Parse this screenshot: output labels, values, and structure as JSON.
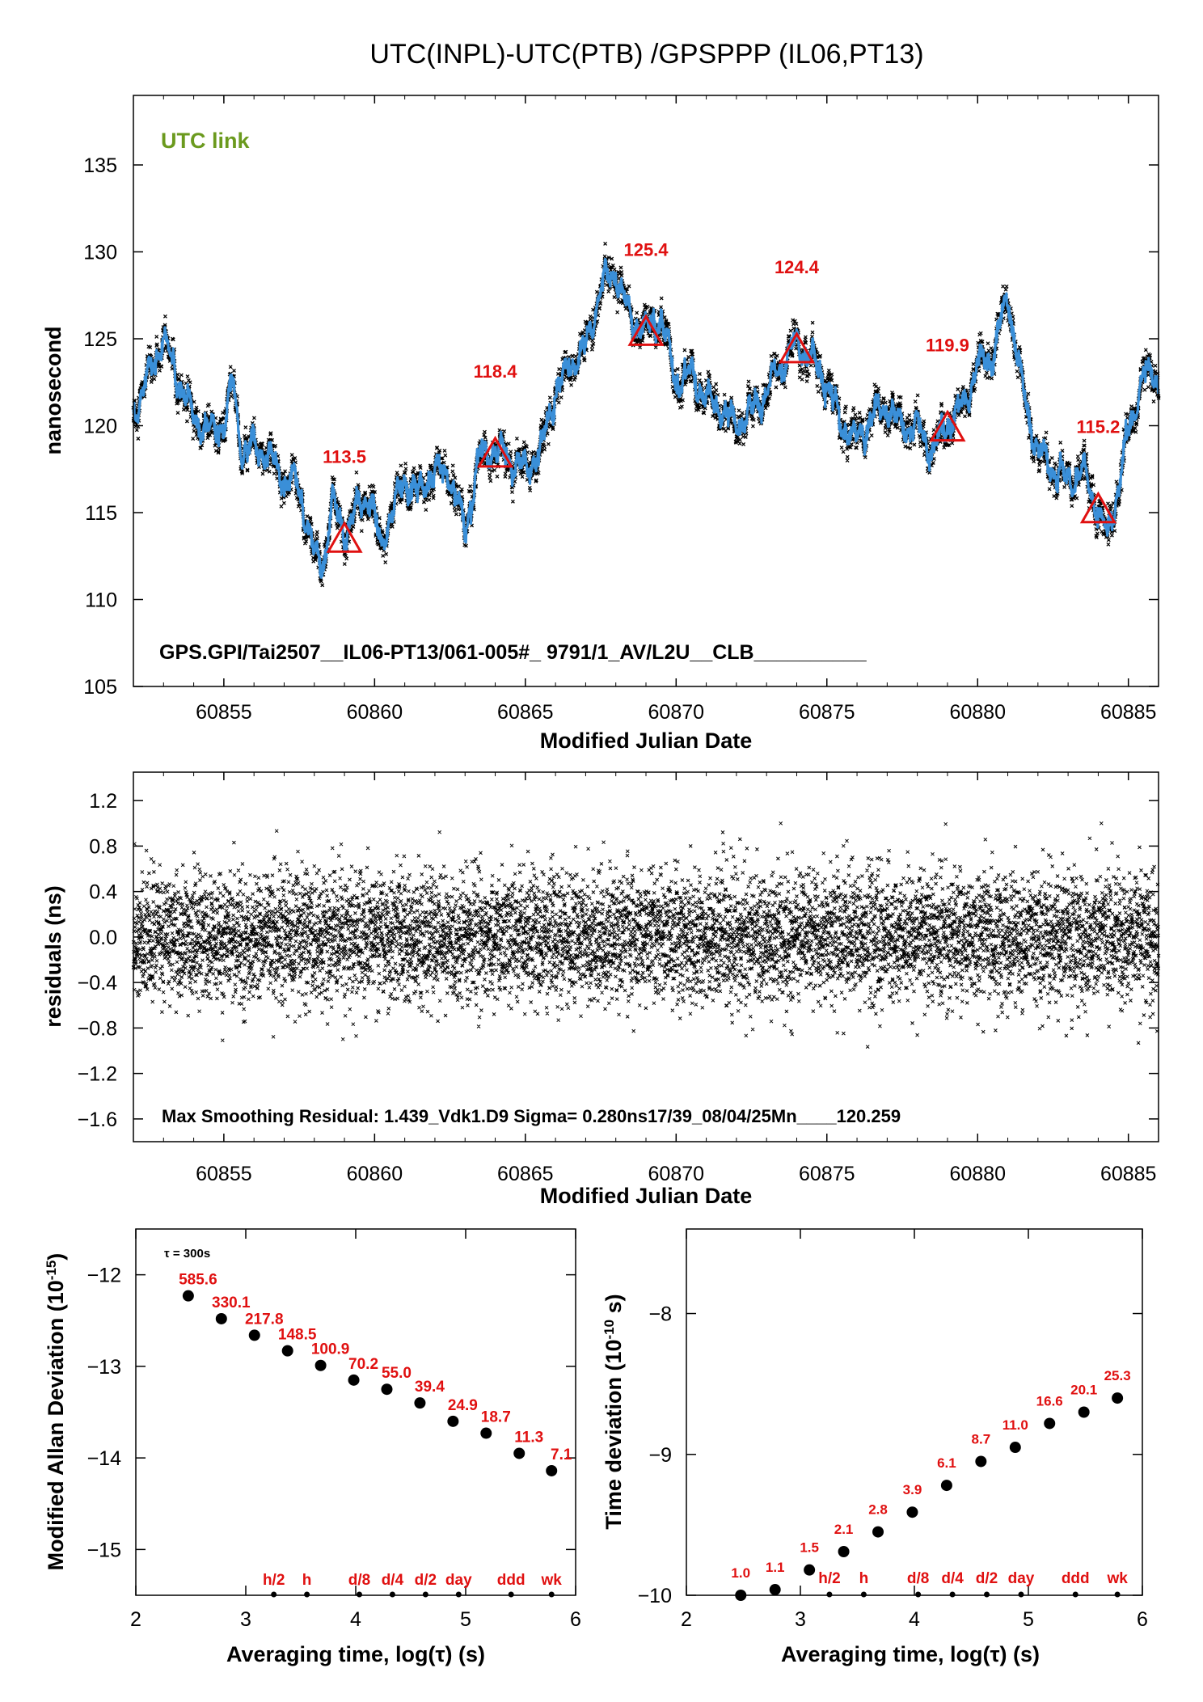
{
  "title": "UTC(INPL)-UTC(PTB)  /GPSPPP  (IL06,PT13)",
  "colors": {
    "series": "#3a8fd8",
    "points": "#000000",
    "markers": "#e01010",
    "link_label": "#6b9a1e"
  },
  "chart_data": [
    {
      "type": "line",
      "ylabel": "nanosecond",
      "xlabel": "Modified Julian Date",
      "xlim": [
        60852,
        60886
      ],
      "ylim": [
        105,
        139
      ],
      "xticks": [
        60855,
        60860,
        60865,
        60870,
        60875,
        60880,
        60885
      ],
      "yticks": [
        105,
        110,
        115,
        120,
        125,
        130,
        135
      ],
      "link_label": "UTC link",
      "footer": "GPS.GPI/Tai2507__IL06-PT13/061-005#_  9791/1_AV/L2U__CLB__________",
      "series_trace": {
        "x": [
          60852,
          60852.5,
          60853,
          60853.5,
          60854,
          60854.5,
          60855,
          60855.3,
          60855.6,
          60856,
          60856.5,
          60857,
          60857.5,
          60858,
          60858.3,
          60858.6,
          60859,
          60859.4,
          60859.8,
          60860.2,
          60860.6,
          60861,
          60861.5,
          60862,
          60862.5,
          60863,
          60863.5,
          60864,
          60864.5,
          60865,
          60865.5,
          60866,
          60866.5,
          60867,
          60867.5,
          60868,
          60868.5,
          60869,
          60869.5,
          60870,
          60870.5,
          60871,
          60871.5,
          60872,
          60872.5,
          60873,
          60873.5,
          60874,
          60874.5,
          60875,
          60875.5,
          60876,
          60876.5,
          60877,
          60877.5,
          60878,
          60878.5,
          60879,
          60879.5,
          60880,
          60880.5,
          60881,
          60881.5,
          60882,
          60882.5,
          60883,
          60883.5,
          60884,
          60884.3,
          60884.6,
          60885,
          60885.5,
          60886
        ],
        "y": [
          120.5,
          123,
          125,
          122.5,
          120.5,
          119.8,
          120,
          122.5,
          118.5,
          118.8,
          118.2,
          117,
          116.5,
          112.5,
          112.0,
          115.5,
          113.8,
          115.0,
          116.2,
          113.0,
          115.2,
          116.7,
          116.2,
          117.5,
          117.2,
          114.0,
          118.3,
          118.6,
          118.0,
          117.5,
          118.5,
          122.0,
          123.5,
          124.5,
          128.0,
          128.8,
          126.0,
          125.5,
          126.2,
          122.5,
          123.0,
          121.5,
          121.0,
          120.0,
          120.8,
          122.0,
          123.5,
          124.8,
          123.8,
          122.5,
          120.0,
          119.2,
          120.5,
          121.2,
          119.8,
          120.0,
          118.5,
          120.2,
          121.0,
          123.5,
          124.0,
          127.5,
          122.0,
          118.5,
          117.5,
          116.8,
          117.5,
          115.2,
          113.5,
          116.0,
          119.5,
          123.0,
          122.8
        ]
      },
      "markers": [
        {
          "x": 60859,
          "y": 113.5,
          "label": "113.5"
        },
        {
          "x": 60864,
          "y": 118.4,
          "label": "118.4"
        },
        {
          "x": 60869,
          "y": 125.4,
          "label": "125.4"
        },
        {
          "x": 60874,
          "y": 124.4,
          "label": "124.4"
        },
        {
          "x": 60879,
          "y": 119.9,
          "label": "119.9"
        },
        {
          "x": 60884,
          "y": 115.2,
          "label": "115.2"
        }
      ]
    },
    {
      "type": "scatter",
      "ylabel": "residuals (ns)",
      "xlabel": "Modified Julian Date",
      "xlim": [
        60852,
        60886
      ],
      "ylim": [
        -1.8,
        1.45
      ],
      "xticks": [
        60855,
        60860,
        60865,
        60870,
        60875,
        60880,
        60885
      ],
      "yticks": [
        "1.2",
        "0.8",
        "0.4",
        "0.0",
        "−0.4",
        "−0.8",
        "−1.2",
        "−1.6"
      ],
      "ytick_values": [
        1.2,
        0.8,
        0.4,
        0.0,
        -0.4,
        -0.8,
        -1.2,
        -1.6
      ],
      "sigma": 0.28,
      "footer": "Max Smoothing Residual: 1.439_Vdk1.D9  Sigma= 0.280ns17/39_08/04/25Mn____120.259"
    },
    {
      "type": "scatter",
      "ylabel": "Modified Allan Deviation (10⁻¹⁵)",
      "ylabel_base": "Modified Allan Deviation (10",
      "ylabel_exp": "-15",
      "ylabel_end": ")",
      "xlabel": "Averaging time, log(τ) (s)",
      "xlim": [
        2,
        6
      ],
      "ylim": [
        -15.5,
        -11.5
      ],
      "xticks": [
        2,
        3,
        4,
        5,
        6
      ],
      "yticks": [
        -12,
        -13,
        -14,
        -15
      ],
      "tau_label": "τ = 300s",
      "x": [
        2.477,
        2.778,
        3.079,
        3.38,
        3.681,
        3.982,
        4.283,
        4.584,
        4.885,
        5.186,
        5.487,
        5.781
      ],
      "y": [
        -12.23,
        -12.48,
        -12.66,
        -12.83,
        -12.99,
        -13.15,
        -13.25,
        -13.4,
        -13.6,
        -13.73,
        -13.95,
        -14.14
      ],
      "labels": [
        "585.6",
        "330.1",
        "217.8",
        "148.5",
        "100.9",
        "70.2",
        "55.0",
        "39.4",
        "24.9",
        "18.7",
        "11.3",
        "7.1"
      ],
      "interval_labels": [
        "h/2",
        "h",
        "d/8",
        "d/4",
        "d/2",
        "day",
        "ddd",
        "wk"
      ],
      "interval_x": [
        3.255,
        3.556,
        4.033,
        4.334,
        4.635,
        4.936,
        5.413,
        5.781
      ]
    },
    {
      "type": "scatter",
      "ylabel": "Time deviation (10⁻¹⁰ s)",
      "ylabel_base": "Time deviation (10",
      "ylabel_exp": "-10",
      "ylabel_end": " s)",
      "xlabel": "Averaging time, log(τ) (s)",
      "xlim": [
        2,
        6
      ],
      "ylim": [
        -10,
        -7.4
      ],
      "xticks": [
        2,
        3,
        4,
        5,
        6
      ],
      "yticks": [
        -8,
        -9,
        -10
      ],
      "x": [
        2.477,
        2.778,
        3.079,
        3.38,
        3.681,
        3.982,
        4.283,
        4.584,
        4.885,
        5.186,
        5.487,
        5.781
      ],
      "y": [
        -10.0,
        -9.96,
        -9.82,
        -9.69,
        -9.55,
        -9.41,
        -9.22,
        -9.05,
        -8.95,
        -8.78,
        -8.7,
        -8.6
      ],
      "labels": [
        "1.0",
        "1.1",
        "1.5",
        "2.1",
        "2.8",
        "3.9",
        "6.1",
        "8.7",
        "11.0",
        "16.6",
        "20.1",
        "25.3"
      ],
      "interval_labels": [
        "h/2",
        "h",
        "d/8",
        "d/4",
        "d/2",
        "day",
        "ddd",
        "wk"
      ],
      "interval_x": [
        3.255,
        3.556,
        4.033,
        4.334,
        4.635,
        4.936,
        5.413,
        5.781
      ]
    }
  ]
}
